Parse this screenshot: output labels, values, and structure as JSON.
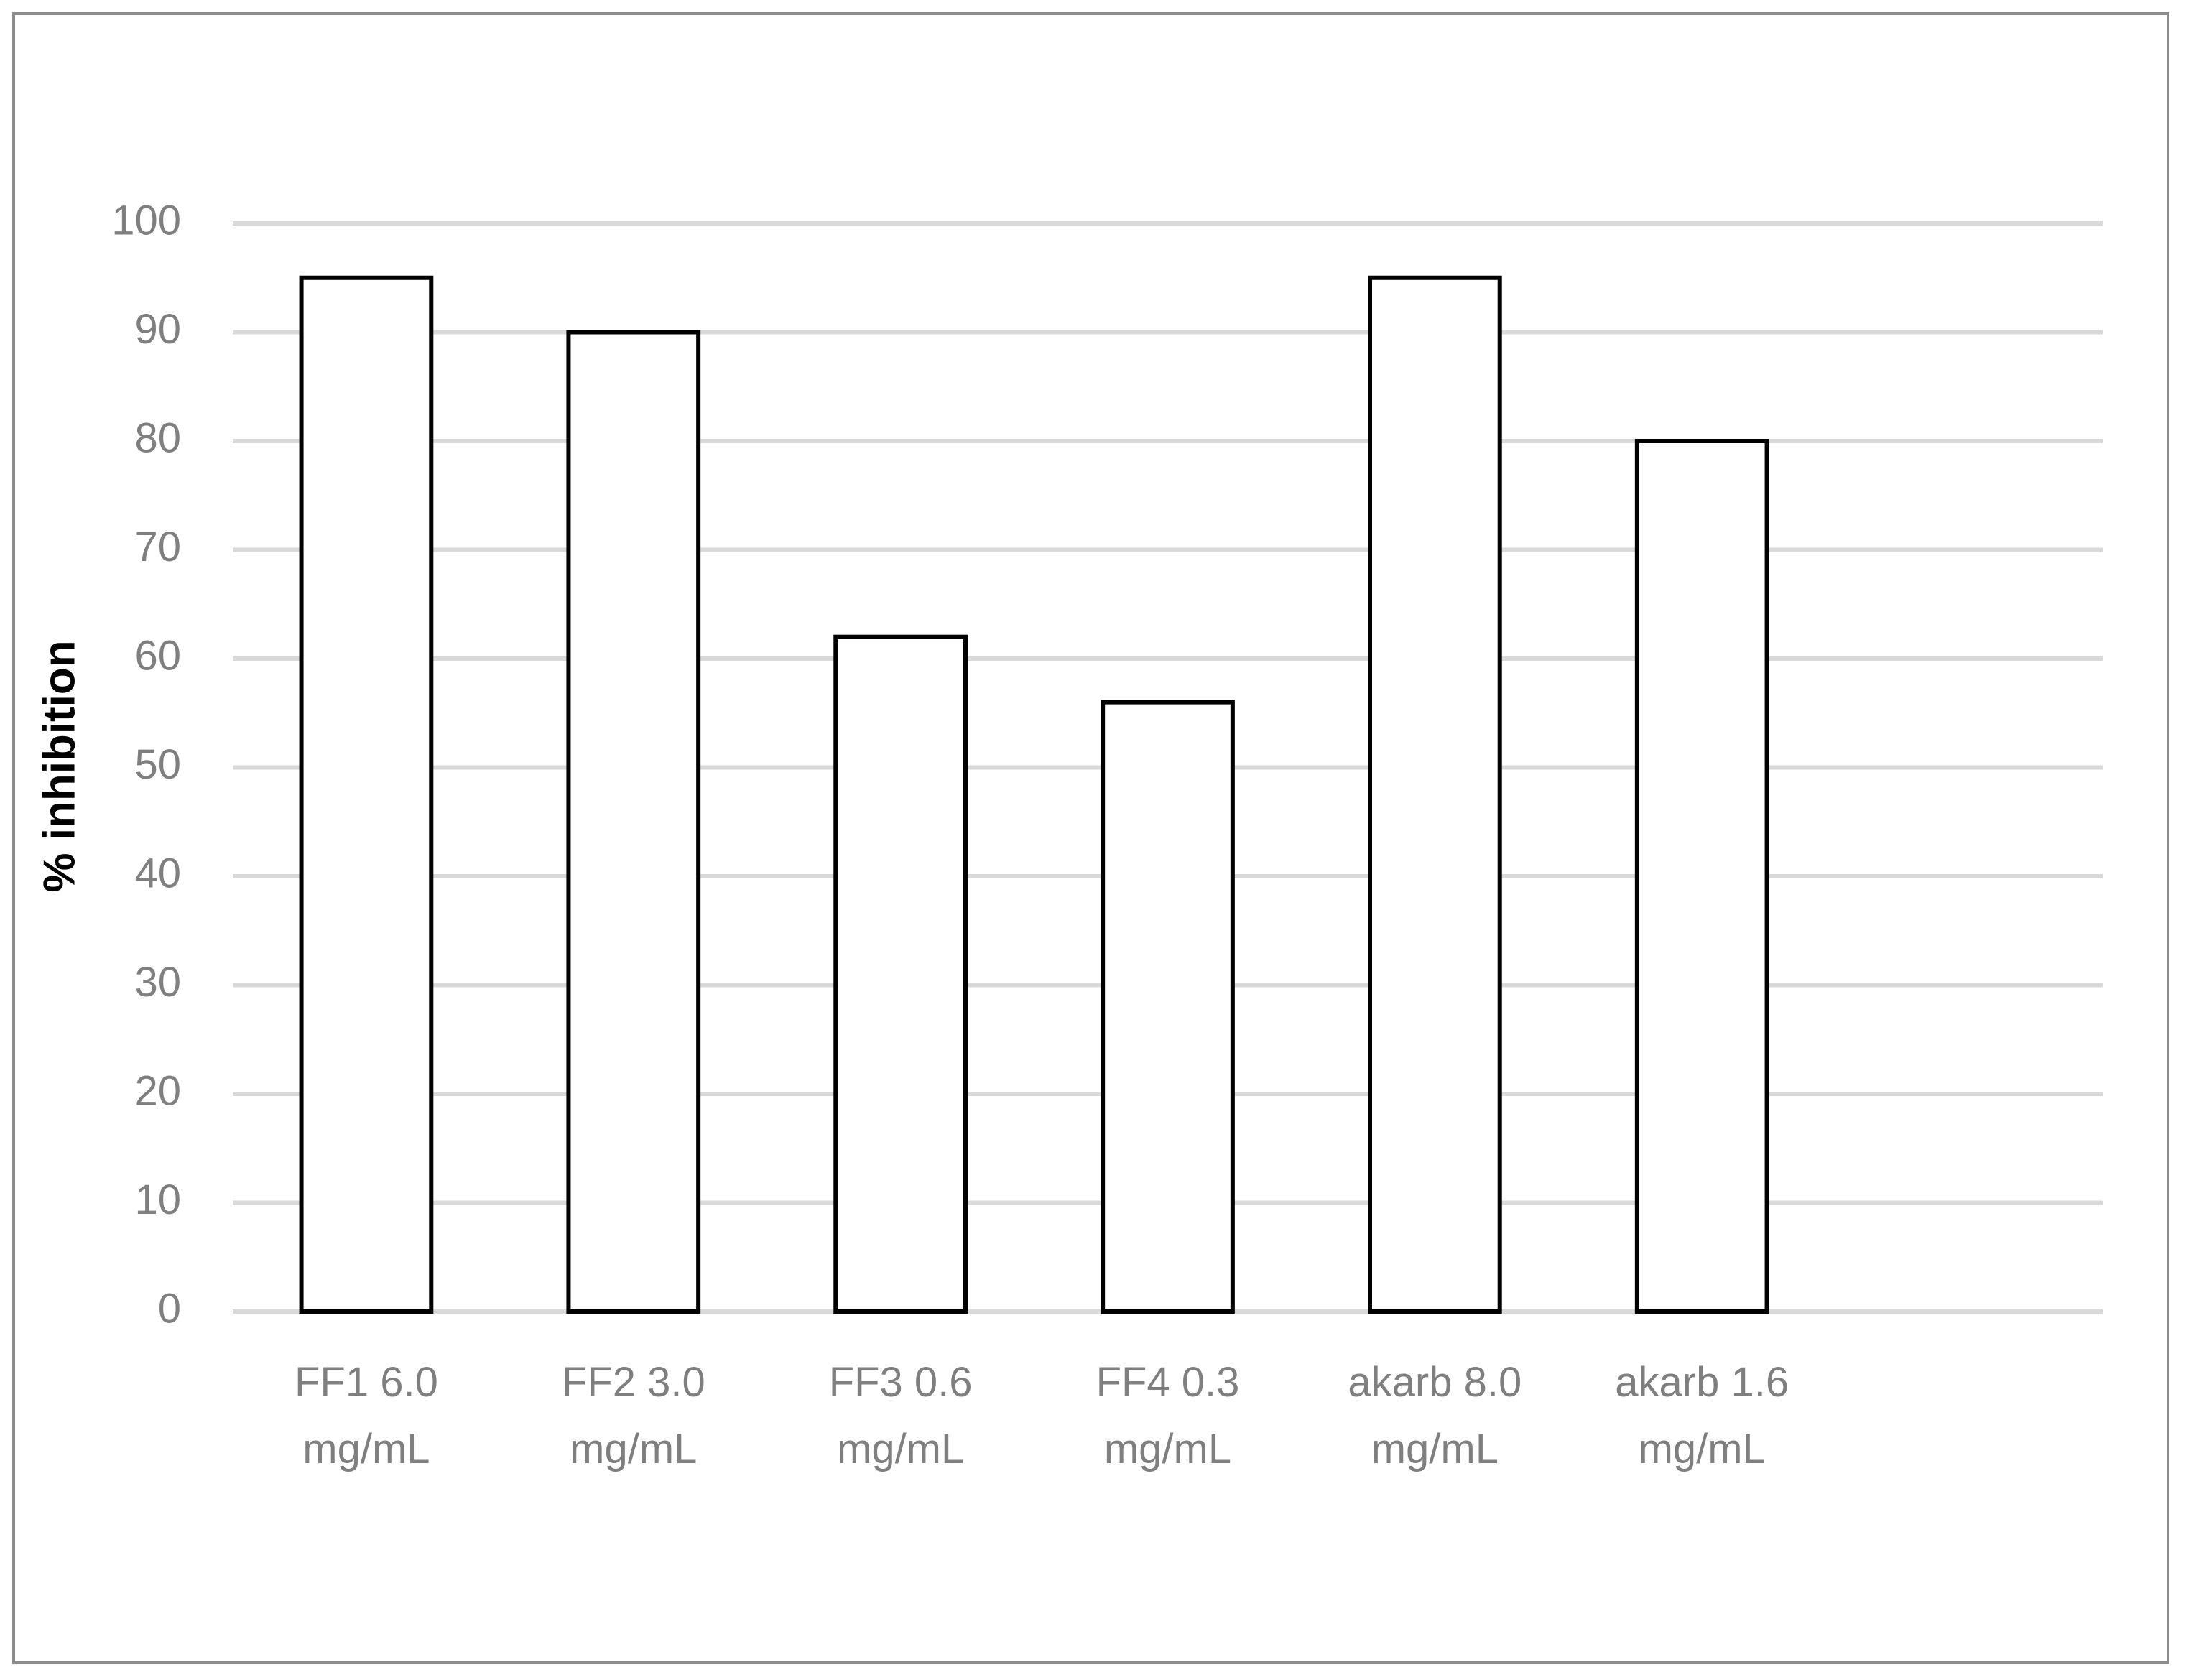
{
  "chart_data": {
    "type": "bar",
    "y_label": "% inhibition",
    "categories": [
      "FF1 6.0 mg/mL",
      "FF2 3.0 mg/mL",
      "FF3 0.6 mg/mL",
      "FF4 0.3 mg/mL",
      "akarb 8.0 mg/mL",
      "akarb 1.6 mg/mL",
      null
    ],
    "values": [
      95,
      90,
      62,
      56,
      95,
      80,
      null
    ],
    "color": "#ffffff",
    "edge_color": "#000000",
    "ylim": [
      0,
      100
    ],
    "yticks": [
      0,
      10,
      20,
      30,
      40,
      50,
      60,
      70,
      80,
      90,
      100
    ],
    "grid": true
  }
}
